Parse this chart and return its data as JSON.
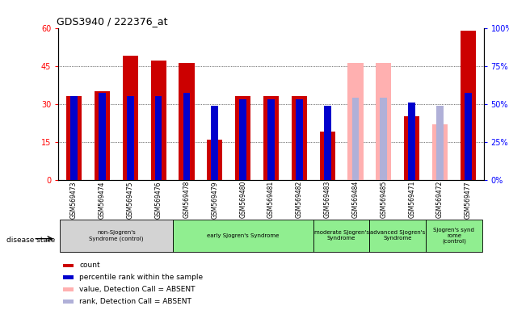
{
  "title": "GDS3940 / 222376_at",
  "samples": [
    "GSM569473",
    "GSM569474",
    "GSM569475",
    "GSM569476",
    "GSM569478",
    "GSM569479",
    "GSM569480",
    "GSM569481",
    "GSM569482",
    "GSM569483",
    "GSM569484",
    "GSM569485",
    "GSM569471",
    "GSM569472",
    "GSM569477"
  ],
  "count_values": [
    33,
    35,
    49,
    47,
    46,
    16,
    33,
    33,
    33,
    19,
    null,
    null,
    25,
    null,
    59
  ],
  "rank_values": [
    55,
    57,
    55,
    55,
    57,
    49,
    53,
    53,
    53,
    49,
    null,
    null,
    51,
    null,
    57
  ],
  "absent_value": [
    null,
    null,
    null,
    null,
    null,
    null,
    null,
    null,
    null,
    null,
    46,
    46,
    null,
    22,
    null
  ],
  "absent_rank": [
    null,
    null,
    null,
    null,
    null,
    null,
    null,
    null,
    null,
    null,
    54,
    54,
    null,
    49,
    null
  ],
  "bar_color": "#cc0000",
  "rank_color": "#0000cc",
  "absent_bar_color": "#ffb0b0",
  "absent_rank_color": "#b0b0d8",
  "ylim_left": [
    0,
    60
  ],
  "ylim_right": [
    0,
    100
  ],
  "yticks_left": [
    0,
    15,
    30,
    45,
    60
  ],
  "yticks_right": [
    0,
    25,
    50,
    75,
    100
  ],
  "group_defs": [
    {
      "label": "non-Sjogren's\nSyndrome (control)",
      "cols": [
        0,
        1,
        2,
        3
      ],
      "color": "#d3d3d3"
    },
    {
      "label": "early Sjogren's Syndrome",
      "cols": [
        4,
        5,
        6,
        7,
        8
      ],
      "color": "#90ee90"
    },
    {
      "label": "moderate Sjogren's\nSyndrome",
      "cols": [
        9,
        10
      ],
      "color": "#90ee90"
    },
    {
      "label": "advanced Sjogren's\nSyndrome",
      "cols": [
        11,
        12
      ],
      "color": "#90ee90"
    },
    {
      "label": "Sjogren's synd\nrome\n(control)",
      "cols": [
        13,
        14
      ],
      "color": "#90ee90"
    }
  ],
  "legend_items": [
    {
      "label": "count",
      "color": "#cc0000"
    },
    {
      "label": "percentile rank within the sample",
      "color": "#0000cc"
    },
    {
      "label": "value, Detection Call = ABSENT",
      "color": "#ffb0b0"
    },
    {
      "label": "rank, Detection Call = ABSENT",
      "color": "#b0b0d8"
    }
  ],
  "disease_state_label": "disease state"
}
